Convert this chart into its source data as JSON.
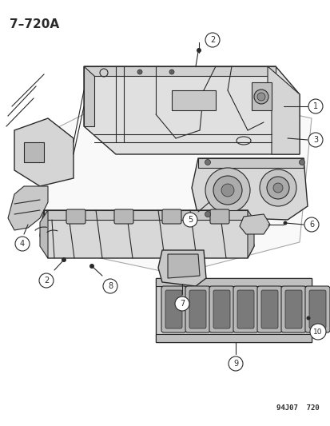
{
  "title": "7–720A",
  "bg_color": "#ffffff",
  "line_color": "#2a2a2a",
  "stamp": "94J07  720",
  "fig_width": 4.14,
  "fig_height": 5.33,
  "dpi": 100
}
